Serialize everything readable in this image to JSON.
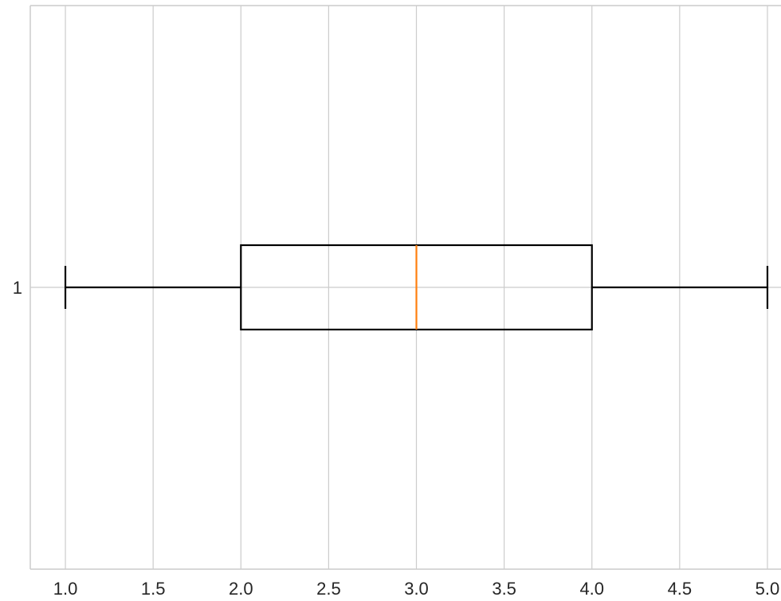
{
  "chart_data": {
    "type": "boxplot",
    "orientation": "horizontal",
    "title": "",
    "xlabel": "",
    "ylabel": "",
    "xlim": [
      0.8,
      5.1
    ],
    "x_ticks": [
      1.0,
      1.5,
      2.0,
      2.5,
      3.0,
      3.5,
      4.0,
      4.5,
      5.0
    ],
    "x_tick_labels": [
      "1.0",
      "1.5",
      "2.0",
      "2.5",
      "3.0",
      "3.5",
      "4.0",
      "4.5",
      "5.0"
    ],
    "y_tick_labels": [
      "1"
    ],
    "grid": true,
    "boxes": [
      {
        "label": "1",
        "whisker_low": 1.0,
        "q1": 2.0,
        "median": 3.0,
        "q3": 4.0,
        "whisker_high": 5.0
      }
    ],
    "colors": {
      "box": "#000000",
      "median": "#ff7f0e",
      "grid": "#cccccc",
      "axis": "#cccccc",
      "tick_text": "#262626"
    }
  }
}
